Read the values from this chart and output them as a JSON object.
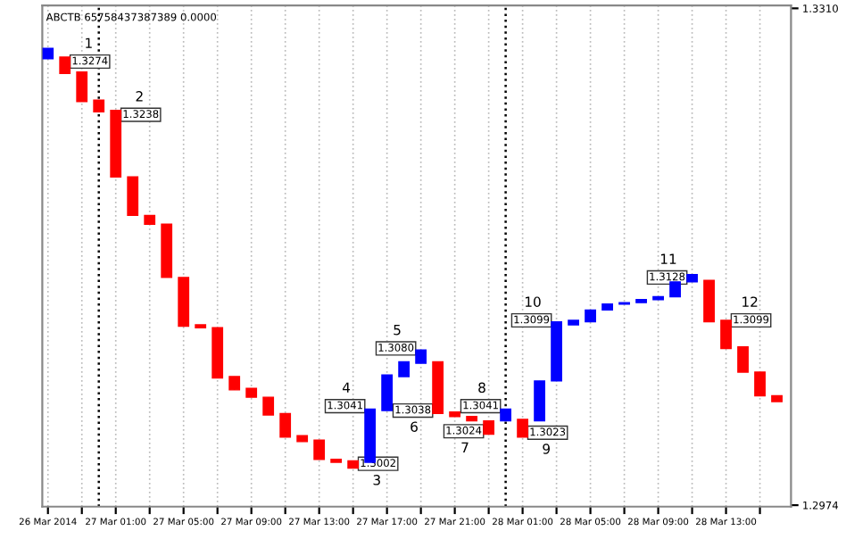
{
  "chart_data": {
    "type": "candlestick",
    "title": "ABCTB 65758437387389 0.0000",
    "x": [
      "2014-03-26T21:00",
      "2014-03-26T22:00",
      "2014-03-26T23:00",
      "2014-03-27T00:00",
      "2014-03-27T01:00",
      "2014-03-27T02:00",
      "2014-03-27T03:00",
      "2014-03-27T04:00",
      "2014-03-27T05:00",
      "2014-03-27T06:00",
      "2014-03-27T07:00",
      "2014-03-27T08:00",
      "2014-03-27T09:00",
      "2014-03-27T10:00",
      "2014-03-27T11:00",
      "2014-03-27T12:00",
      "2014-03-27T13:00",
      "2014-03-27T14:00",
      "2014-03-27T15:00",
      "2014-03-27T16:00",
      "2014-03-27T17:00",
      "2014-03-27T18:00",
      "2014-03-27T19:00",
      "2014-03-27T20:00",
      "2014-03-27T21:00",
      "2014-03-27T22:00",
      "2014-03-27T23:00",
      "2014-03-28T00:00",
      "2014-03-28T01:00",
      "2014-03-28T02:00",
      "2014-03-28T03:00",
      "2014-03-28T04:00",
      "2014-03-28T05:00",
      "2014-03-28T06:00",
      "2014-03-28T07:00",
      "2014-03-28T08:00",
      "2014-03-28T09:00",
      "2014-03-28T10:00",
      "2014-03-28T11:00",
      "2014-03-28T12:00",
      "2014-03-28T13:00",
      "2014-03-28T14:00",
      "2014-03-28T15:00",
      "2014-03-28T16:00"
    ],
    "ohlc": [
      [
        1.3276,
        1.3283,
        1.3276,
        1.3283
      ],
      [
        1.3277,
        1.3277,
        1.3266,
        1.3266
      ],
      [
        1.3267,
        1.3267,
        1.3247,
        1.3247
      ],
      [
        1.3248,
        1.3248,
        1.324,
        1.324
      ],
      [
        1.3241,
        1.3241,
        1.3196,
        1.3196
      ],
      [
        1.3196,
        1.3196,
        1.317,
        1.317
      ],
      [
        1.317,
        1.317,
        1.3164,
        1.3164
      ],
      [
        1.3164,
        1.3164,
        1.3128,
        1.3128
      ],
      [
        1.3128,
        1.3128,
        1.3095,
        1.3095
      ],
      [
        1.3096,
        1.3096,
        1.3094,
        1.3094
      ],
      [
        1.3094,
        1.3094,
        1.306,
        1.306
      ],
      [
        1.3061,
        1.3061,
        1.3052,
        1.3052
      ],
      [
        1.3053,
        1.3053,
        1.3047,
        1.3047
      ],
      [
        1.3047,
        1.3047,
        1.3035,
        1.3035
      ],
      [
        1.3036,
        1.3036,
        1.302,
        1.302
      ],
      [
        1.3021,
        1.3021,
        1.3017,
        1.3017
      ],
      [
        1.3018,
        1.3018,
        1.3005,
        1.3005
      ],
      [
        1.3005,
        1.3005,
        1.3003,
        1.3003
      ],
      [
        1.3004,
        1.3004,
        1.2999,
        1.2999
      ],
      [
        1.3003,
        1.3039,
        1.3003,
        1.3039
      ],
      [
        1.3038,
        1.3062,
        1.3038,
        1.3062
      ],
      [
        1.3061,
        1.3071,
        1.3061,
        1.3071
      ],
      [
        1.307,
        1.3079,
        1.307,
        1.3079
      ],
      [
        1.3071,
        1.3071,
        1.3036,
        1.3036
      ],
      [
        1.3037,
        1.3037,
        1.3034,
        1.3034
      ],
      [
        1.3034,
        1.3034,
        1.3031,
        1.3031
      ],
      [
        1.3031,
        1.3031,
        1.3022,
        1.3022
      ],
      [
        1.3031,
        1.3039,
        1.3031,
        1.3039
      ],
      [
        1.3032,
        1.3032,
        1.302,
        1.302
      ],
      [
        1.3031,
        1.3058,
        1.3031,
        1.3058
      ],
      [
        1.3058,
        1.3098,
        1.3058,
        1.3098
      ],
      [
        1.3096,
        1.3099,
        1.3096,
        1.3099
      ],
      [
        1.3098,
        1.3106,
        1.3098,
        1.3106
      ],
      [
        1.3106,
        1.311,
        1.3106,
        1.311
      ],
      [
        1.311,
        1.3111,
        1.311,
        1.3111
      ],
      [
        1.3111,
        1.3113,
        1.3111,
        1.3113
      ],
      [
        1.3113,
        1.3115,
        1.3113,
        1.3115
      ],
      [
        1.3115,
        1.3125,
        1.3115,
        1.3125
      ],
      [
        1.3125,
        1.313,
        1.3125,
        1.313
      ],
      [
        1.3126,
        1.3126,
        1.3098,
        1.3098
      ],
      [
        1.3099,
        1.3099,
        1.308,
        1.308
      ],
      [
        1.3081,
        1.3081,
        1.3064,
        1.3064
      ],
      [
        1.3064,
        1.3064,
        1.3048,
        1.3048
      ],
      [
        1.3048,
        1.3048,
        1.3044,
        1.3044
      ]
    ],
    "colors": [
      "#0000ff",
      "#ff0000",
      "#ff0000",
      "#ff0000",
      "#ff0000",
      "#ff0000",
      "#ff0000",
      "#ff0000",
      "#ff0000",
      "#ff0000",
      "#ff0000",
      "#ff0000",
      "#ff0000",
      "#ff0000",
      "#ff0000",
      "#ff0000",
      "#ff0000",
      "#ff0000",
      "#ff0000",
      "#0000ff",
      "#0000ff",
      "#0000ff",
      "#0000ff",
      "#ff0000",
      "#ff0000",
      "#ff0000",
      "#ff0000",
      "#0000ff",
      "#ff0000",
      "#0000ff",
      "#0000ff",
      "#0000ff",
      "#0000ff",
      "#0000ff",
      "#0000ff",
      "#0000ff",
      "#0000ff",
      "#0000ff",
      "#0000ff",
      "#ff0000",
      "#ff0000",
      "#ff0000",
      "#ff0000",
      "#ff0000"
    ],
    "value_labels": [
      null,
      "1.3274",
      null,
      null,
      "1.3238",
      null,
      null,
      null,
      null,
      null,
      null,
      null,
      null,
      null,
      null,
      null,
      null,
      null,
      "1.3002",
      "1.3041",
      null,
      null,
      "1.3080",
      "1.3038",
      null,
      null,
      "1.3024",
      "1.3041",
      "1.3023",
      null,
      "1.3099",
      null,
      null,
      null,
      null,
      null,
      null,
      null,
      "1.3128",
      null,
      "1.3099",
      null,
      null,
      null
    ],
    "annotations": [
      "1",
      "2",
      "3",
      "4",
      "5",
      "6",
      "7",
      "8",
      "9",
      "10",
      "11",
      "12"
    ],
    "ref_lines": [
      {
        "axis": "x",
        "value": "2014-03-27T00:00",
        "color": "#000000",
        "line_style": "dotted"
      },
      {
        "axis": "x",
        "value": "2014-03-28T00:00",
        "color": "#000000",
        "line_style": "dotted"
      }
    ],
    "xlim": [
      "2014-03-26T20:40",
      "2014-03-28T16:50"
    ],
    "xticks": [
      {
        "value": "2014-03-26T21:00",
        "label": "26 Mar 2014"
      },
      {
        "value": "2014-03-26T23:00",
        "label": null
      },
      {
        "value": "2014-03-27T01:00",
        "label": "27 Mar 01:00"
      },
      {
        "value": "2014-03-27T03:00",
        "label": null
      },
      {
        "value": "2014-03-27T05:00",
        "label": "27 Mar 05:00"
      },
      {
        "value": "2014-03-27T07:00",
        "label": null
      },
      {
        "value": "2014-03-27T09:00",
        "label": "27 Mar 09:00"
      },
      {
        "value": "2014-03-27T11:00",
        "label": null
      },
      {
        "value": "2014-03-27T13:00",
        "label": "27 Mar 13:00"
      },
      {
        "value": "2014-03-27T15:00",
        "label": null
      },
      {
        "value": "2014-03-27T17:00",
        "label": "27 Mar 17:00"
      },
      {
        "value": "2014-03-27T19:00",
        "label": null
      },
      {
        "value": "2014-03-27T21:00",
        "label": "27 Mar 21:00"
      },
      {
        "value": "2014-03-27T23:00",
        "label": null
      },
      {
        "value": "2014-03-28T01:00",
        "label": "28 Mar 01:00"
      },
      {
        "value": "2014-03-28T03:00",
        "label": null
      },
      {
        "value": "2014-03-28T05:00",
        "label": "28 Mar 05:00"
      },
      {
        "value": "2014-03-28T07:00",
        "label": null
      },
      {
        "value": "2014-03-28T09:00",
        "label": "28 Mar 09:00"
      },
      {
        "value": "2014-03-28T11:00",
        "label": null
      },
      {
        "value": "2014-03-28T13:00",
        "label": "28 Mar 13:00"
      },
      {
        "value": "2014-03-28T15:00",
        "label": null
      }
    ],
    "ylim": [
      1.2973,
      1.3312
    ],
    "yticks": [
      {
        "value": 1.331,
        "label": "1.3310"
      },
      {
        "value": 1.2974,
        "label": "1.2974"
      }
    ],
    "grid": "x"
  }
}
